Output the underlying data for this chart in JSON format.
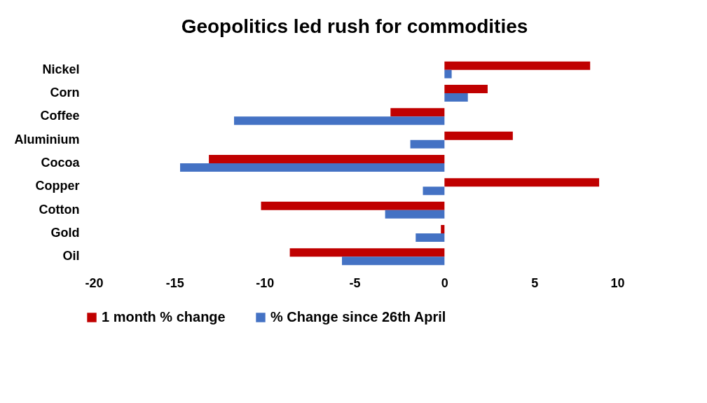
{
  "chart_data": {
    "type": "bar",
    "orientation": "horizontal",
    "title": "Geopolitics led rush for commodities",
    "categories": [
      "Nickel",
      "Corn",
      "Coffee",
      "Aluminium",
      "Cocoa",
      "Copper",
      "Cotton",
      "Gold",
      "Oil"
    ],
    "series": [
      {
        "name": "1 month % change",
        "color": "#c00000",
        "values": [
          8.1,
          2.4,
          -3.0,
          3.8,
          -13.1,
          8.6,
          -10.2,
          -0.2,
          -8.6
        ]
      },
      {
        "name": "% Change since 26th April",
        "color": "#4472c4",
        "values": [
          0.4,
          1.3,
          -11.7,
          -1.9,
          -14.7,
          -1.2,
          -3.3,
          -1.6,
          -5.7
        ]
      }
    ],
    "xlim": [
      -20,
      10
    ],
    "xticks": [
      -20,
      -15,
      -10,
      -5,
      0,
      5,
      10
    ],
    "legend": "bottom"
  }
}
